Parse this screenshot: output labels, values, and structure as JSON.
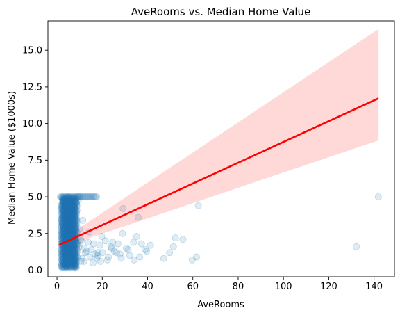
{
  "chart_data": {
    "type": "scatter",
    "title": "AveRooms vs. Median Home Value",
    "xlabel": "AveRooms",
    "ylabel": "Median Home Value ($1000s)",
    "xlim": [
      -4,
      149
    ],
    "ylim": [
      -0.45,
      17.0
    ],
    "x_ticks": [
      0,
      20,
      40,
      60,
      80,
      100,
      120,
      140
    ],
    "y_ticks": [
      0.0,
      2.5,
      5.0,
      7.5,
      10.0,
      12.5,
      15.0
    ],
    "x_tick_labels": [
      "0",
      "20",
      "40",
      "60",
      "80",
      "100",
      "120",
      "140"
    ],
    "y_tick_labels": [
      "0.0",
      "2.5",
      "5.0",
      "7.5",
      "10.0",
      "12.5",
      "15.0"
    ],
    "grid": false,
    "legend": null,
    "colors": {
      "points": "#1f77b4",
      "regression_line": "#ff0000",
      "confidence_band": "#ff9999"
    },
    "series": [
      {
        "kind": "scatter",
        "x": [
          4.5,
          5.1,
          5.6,
          6.2,
          6.8,
          7.4,
          8.0,
          8.6,
          4.9,
          5.4,
          6.0,
          6.6,
          7.2,
          7.8,
          3.9,
          4.3,
          3.5,
          5.0,
          5.8,
          6.4,
          7.0,
          7.6,
          8.4,
          9.1,
          9.7,
          10.4,
          11.2,
          12.5,
          13.8,
          15.2,
          17.6,
          18.9,
          20.1,
          21.4,
          22.7,
          23.8,
          25.3,
          26.9,
          28.4,
          29.2,
          30.6,
          32.1,
          33.8,
          35.2,
          36.5,
          37.3,
          38.9,
          39.6,
          41.3,
          47.1,
          49.7,
          51.4,
          52.3,
          55.6,
          59.7,
          61.6,
          62.4,
          132.2,
          141.9,
          14.2,
          16.8,
          19.3,
          24.6,
          27.8,
          31.4,
          34.0,
          35.9,
          12.1,
          15.9,
          18.2,
          10.8,
          11.9,
          13.1,
          14.6,
          16.2,
          17.9,
          19.8,
          22.3,
          24.1,
          26.3,
          28.9,
          9.3,
          9.9,
          10.6,
          11.4,
          8.9,
          9.5,
          10.1,
          7.9,
          8.7
        ],
        "y": [
          0.4,
          1.1,
          1.7,
          2.3,
          2.9,
          3.5,
          4.1,
          4.6,
          0.8,
          1.4,
          2.0,
          2.6,
          3.2,
          3.8,
          1.5,
          2.4,
          0.9,
          5.0,
          4.4,
          3.0,
          2.1,
          1.3,
          0.7,
          0.9,
          1.6,
          2.1,
          0.8,
          1.2,
          1.9,
          1.4,
          0.8,
          1.7,
          1.2,
          2.0,
          0.9,
          1.6,
          1.3,
          1.8,
          0.8,
          4.2,
          1.5,
          1.0,
          1.9,
          2.3,
          0.9,
          1.8,
          1.4,
          1.3,
          1.7,
          0.8,
          1.2,
          1.6,
          2.2,
          2.1,
          0.7,
          0.9,
          4.4,
          1.6,
          5.0,
          2.6,
          1.1,
          0.6,
          1.9,
          1.1,
          1.4,
          0.7,
          3.6,
          1.5,
          0.5,
          1.2,
          2.0,
          0.6,
          1.3,
          0.9,
          1.8,
          1.0,
          2.3,
          0.7,
          1.5,
          1.2,
          2.5,
          1.8,
          2.8,
          0.6,
          3.4,
          5.0,
          4.8,
          5.0,
          0.3,
          0.5
        ]
      },
      {
        "kind": "regression",
        "name": "",
        "x": [
          0.9,
          142
        ],
        "y": [
          1.72,
          11.72
        ]
      },
      {
        "kind": "confidence_band",
        "x": [
          0.9,
          142
        ],
        "upper": [
          1.95,
          16.45
        ],
        "lower": [
          1.49,
          8.85
        ]
      }
    ]
  }
}
